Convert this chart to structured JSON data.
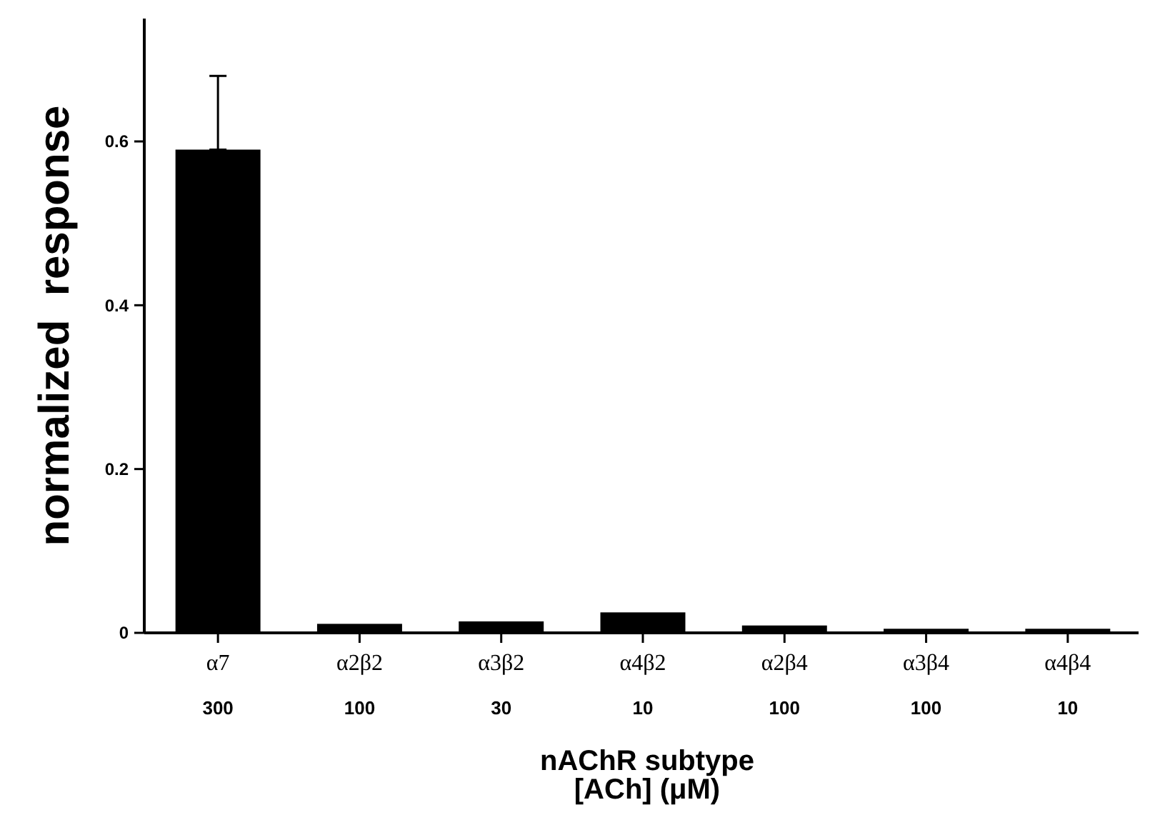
{
  "chart_data": {
    "type": "bar",
    "xlabel": "nAChR subtype\n[ACh] (μM)",
    "ylabel": "normalized  response",
    "categories": [
      "α7\n300",
      "α2β2\n100",
      "α3β2\n30",
      "α4β2\n10",
      "α2β4\n100",
      "α3β4\n100",
      "α4β4\n10"
    ],
    "values": [
      0.59,
      0.011,
      0.014,
      0.025,
      0.009,
      0.005,
      0.005
    ],
    "errors": [
      [
        0.59,
        0.68
      ],
      null,
      null,
      null,
      null,
      null,
      null
    ],
    "color": "#000000",
    "ylim": [
      0,
      0.75
    ],
    "yticks": [
      0,
      0.2,
      0.4,
      0.6
    ],
    "grid": false
  }
}
